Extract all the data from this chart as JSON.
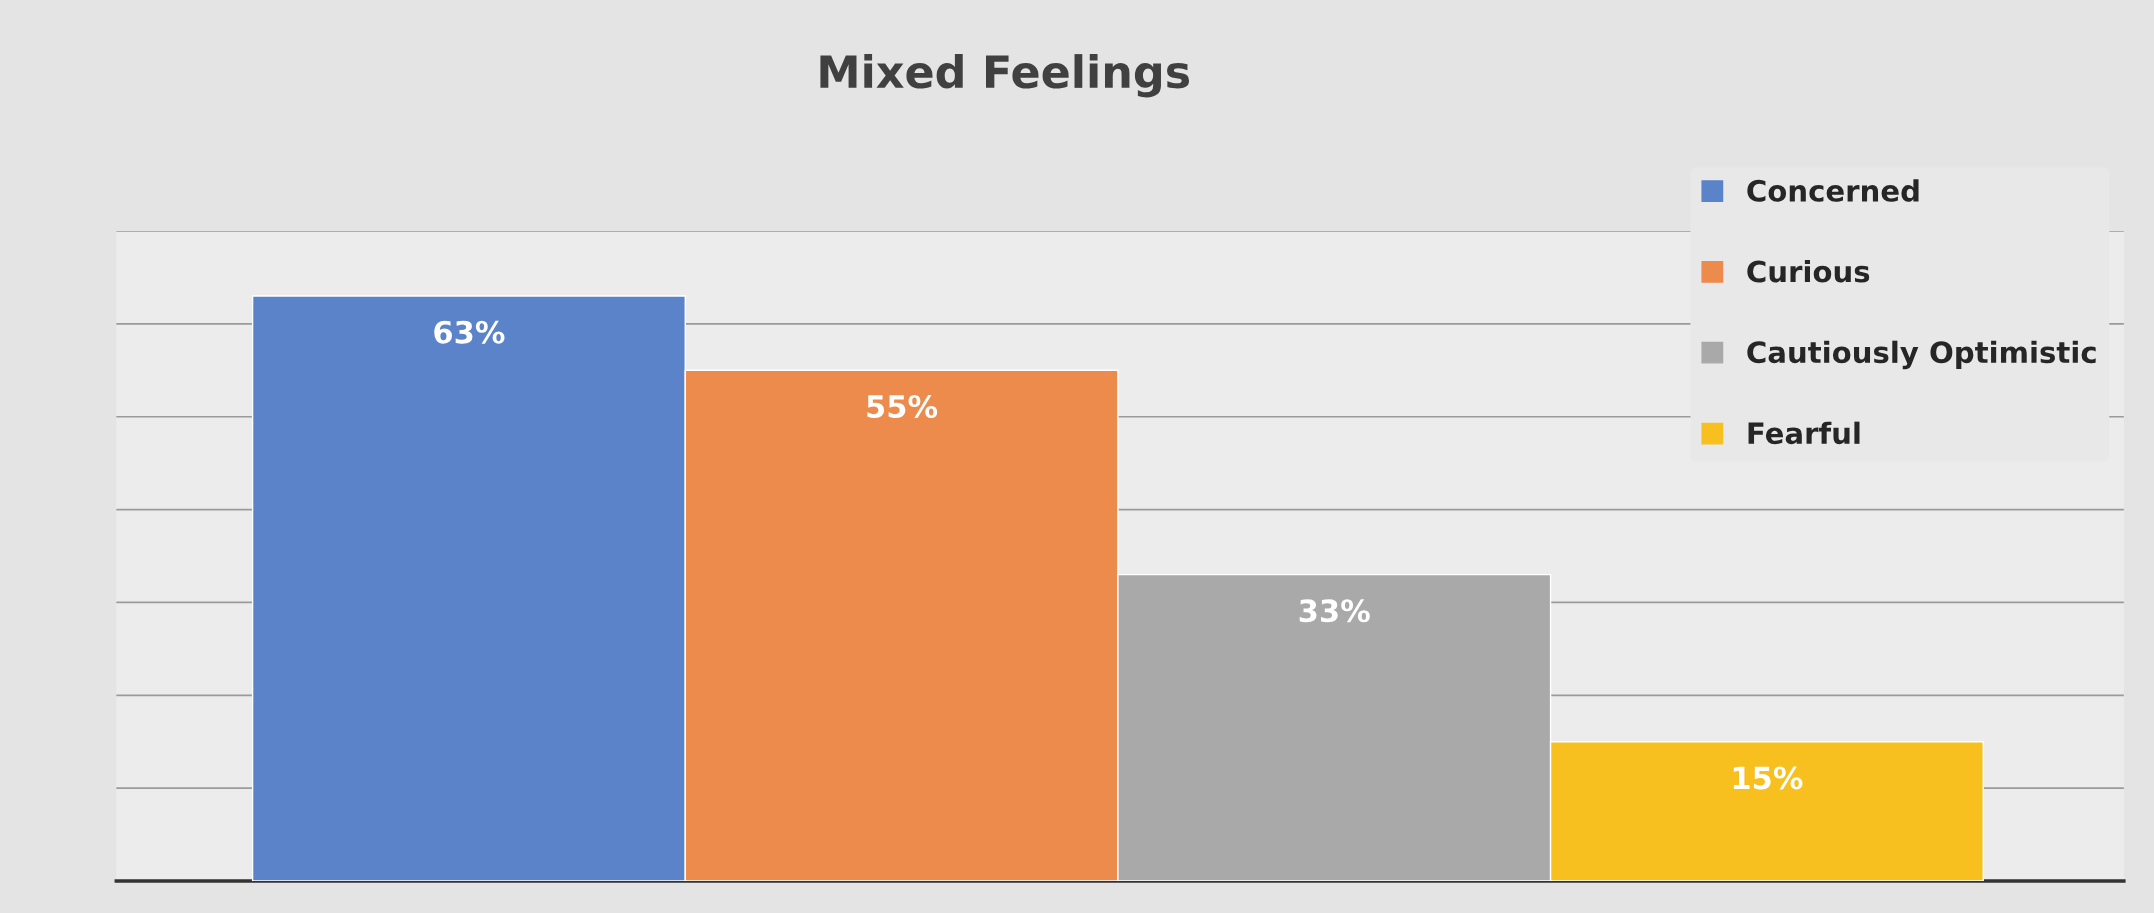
{
  "chart_data": {
    "type": "bar",
    "title": "Mixed Feelings",
    "categories": [
      null
    ],
    "series": [
      {
        "name": "Concerned",
        "color": "#5a83c9",
        "values": [
          63
        ],
        "value_labels": [
          "63%"
        ]
      },
      {
        "name": "Curious",
        "color": "#ec8b4c",
        "values": [
          55
        ],
        "value_labels": [
          "55%"
        ]
      },
      {
        "name": "Cautiously Optimistic",
        "color": "#a9a9a9",
        "values": [
          33
        ],
        "value_labels": [
          "33%"
        ]
      },
      {
        "name": "Fearful",
        "color": "#f7c01f",
        "values": [
          15
        ],
        "value_labels": [
          "15%"
        ]
      }
    ],
    "ylim": [
      0,
      70
    ],
    "yticks": [
      {
        "value": 10,
        "label": null
      },
      {
        "value": 20,
        "label": null
      },
      {
        "value": 30,
        "label": null
      },
      {
        "value": 40,
        "label": null
      },
      {
        "value": 50,
        "label": null
      },
      {
        "value": 60,
        "label": null
      },
      {
        "value": 70,
        "label": null
      }
    ],
    "grid": "y",
    "legend": "top right"
  }
}
